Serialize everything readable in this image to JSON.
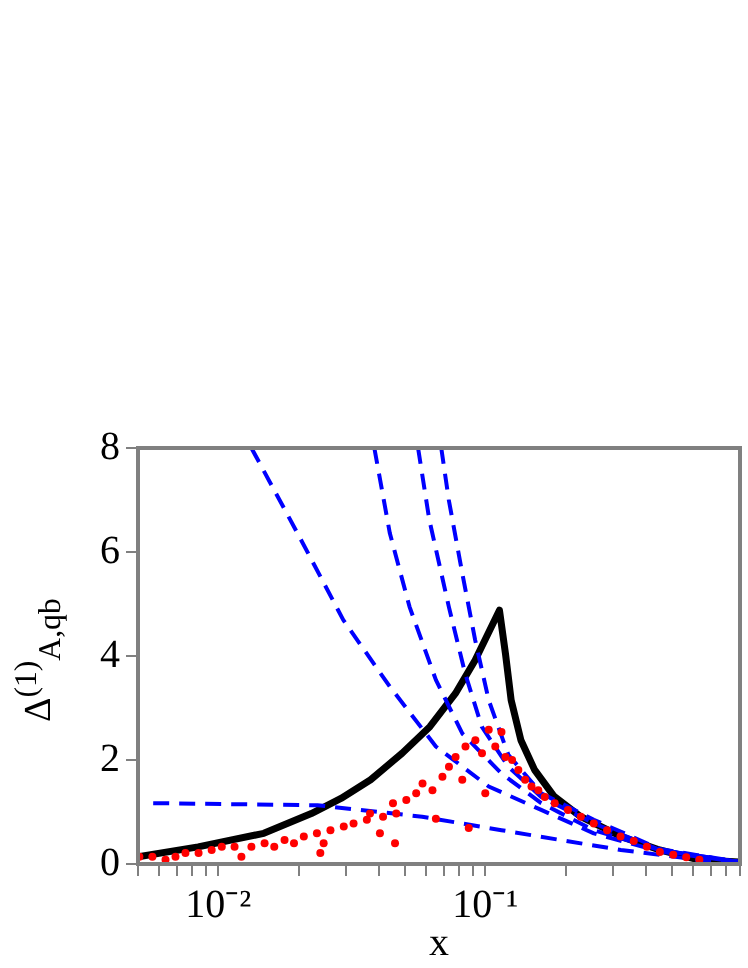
{
  "chart_data": {
    "type": "line",
    "xlabel": "x",
    "ylabel": "Δ$^{(1)}$$_{A,qb}$",
    "xlim": [
      0.005,
      0.9
    ],
    "ylim": [
      0,
      8
    ],
    "log": "x",
    "grid": false,
    "legend": false,
    "xticks": [
      {
        "value": 0.005,
        "label": null
      },
      {
        "value": 0.006,
        "label": null
      },
      {
        "value": 0.007,
        "label": null
      },
      {
        "value": 0.008,
        "label": null
      },
      {
        "value": 0.009,
        "label": null
      },
      {
        "value": 0.01,
        "label": "10⁻²"
      },
      {
        "value": 0.02,
        "label": null
      },
      {
        "value": 0.03,
        "label": null
      },
      {
        "value": 0.04,
        "label": null
      },
      {
        "value": 0.05,
        "label": null
      },
      {
        "value": 0.06,
        "label": null
      },
      {
        "value": 0.07,
        "label": null
      },
      {
        "value": 0.08,
        "label": null
      },
      {
        "value": 0.09,
        "label": null
      },
      {
        "value": 0.1,
        "label": "10⁻¹"
      },
      {
        "value": 0.2,
        "label": null
      },
      {
        "value": 0.3,
        "label": null
      },
      {
        "value": 0.4,
        "label": null
      },
      {
        "value": 0.5,
        "label": null
      },
      {
        "value": 0.6,
        "label": null
      },
      {
        "value": 0.7,
        "label": null
      },
      {
        "value": 0.8,
        "label": null
      },
      {
        "value": 0.9,
        "label": null
      }
    ],
    "yticks": [
      0,
      2,
      4,
      6,
      8
    ],
    "series": [
      {
        "color": "#0000ff",
        "line_style": "dashed",
        "marker": "none",
        "x": [
          0.0057,
          0.0235,
          0.058,
          0.115,
          0.192,
          0.322,
          0.63,
          0.89
        ],
        "values": [
          1.17,
          1.13,
          0.91,
          0.65,
          0.46,
          0.27,
          0.08,
          0.02
        ]
      },
      {
        "color": "#0000ff",
        "line_style": "dashed",
        "marker": "none",
        "x": [
          0.0133,
          0.0198,
          0.0294,
          0.0439,
          0.0653,
          0.103,
          0.162,
          0.255,
          0.45,
          0.89
        ],
        "values": [
          8,
          6.36,
          4.69,
          3.41,
          2.26,
          1.49,
          1.04,
          0.59,
          0.24,
          0.04
        ]
      },
      {
        "color": "#0000ff",
        "line_style": "dashed",
        "marker": "none",
        "x": [
          0.0384,
          0.0439,
          0.052,
          0.0653,
          0.082,
          0.115,
          0.162,
          0.255,
          0.45,
          0.89
        ],
        "values": [
          8,
          6.36,
          4.95,
          3.54,
          2.51,
          1.74,
          1.17,
          0.65,
          0.27,
          0.04
        ]
      },
      {
        "color": "#0000ff",
        "line_style": "dashed",
        "marker": "none",
        "x": [
          0.056,
          0.0617,
          0.073,
          0.084,
          0.097,
          0.122,
          0.162,
          0.255,
          0.45,
          0.89
        ],
        "values": [
          8,
          6.62,
          4.95,
          3.67,
          2.64,
          1.87,
          1.29,
          0.78,
          0.27,
          0.04
        ]
      },
      {
        "color": "#0000ff",
        "line_style": "dashed",
        "marker": "none",
        "x": [
          0.0684,
          0.073,
          0.082,
          0.0916,
          0.103,
          0.122,
          0.162,
          0.255,
          0.45,
          0.89
        ],
        "values": [
          8,
          7.0,
          5.59,
          4.31,
          3.15,
          2.1,
          1.36,
          0.85,
          0.29,
          0.04
        ]
      },
      {
        "color": "#000000",
        "line_style": "solid",
        "marker": "none",
        "x": [
          0.005,
          0.0084,
          0.0148,
          0.0223,
          0.0288,
          0.0372,
          0.0488,
          0.062,
          0.0773,
          0.0916,
          0.113,
          0.119,
          0.125,
          0.136,
          0.153,
          0.181,
          0.228,
          0.322,
          0.45,
          0.63,
          0.89
        ],
        "values": [
          0.14,
          0.33,
          0.59,
          0.97,
          1.26,
          1.62,
          2.13,
          2.64,
          3.28,
          3.92,
          4.88,
          4.05,
          3.15,
          2.38,
          1.81,
          1.3,
          0.91,
          0.53,
          0.27,
          0.08,
          0.04
        ]
      },
      {
        "type": "scatter",
        "color": "#ff0000",
        "marker": "circle",
        "x": [
          0.00506,
          0.00566,
          0.00634,
          0.00691,
          0.00753,
          0.00843,
          0.00944,
          0.0103,
          0.0115,
          0.0122,
          0.0133,
          0.0149,
          0.0162,
          0.0177,
          0.0192,
          0.0209,
          0.0234,
          0.0248,
          0.0241,
          0.0263,
          0.0295,
          0.0321,
          0.036,
          0.037,
          0.0414,
          0.0403,
          0.0451,
          0.0464,
          0.0459,
          0.0506,
          0.0551,
          0.0582,
          0.0634,
          0.0653,
          0.0691,
          0.0731,
          0.0774,
          0.082,
          0.0867,
          0.0843,
          0.0918,
          0.0972,
          0.1,
          0.103,
          0.109,
          0.115,
          0.119,
          0.126,
          0.133,
          0.141,
          0.149,
          0.158,
          0.167,
          0.182,
          0.204,
          0.228,
          0.255,
          0.286,
          0.321,
          0.36,
          0.403,
          0.451,
          0.506,
          0.566,
          0.634
        ],
        "values": [
          0.14,
          0.14,
          0.08,
          0.14,
          0.21,
          0.21,
          0.27,
          0.33,
          0.33,
          0.14,
          0.33,
          0.4,
          0.33,
          0.46,
          0.4,
          0.53,
          0.59,
          0.4,
          0.21,
          0.65,
          0.72,
          0.78,
          0.85,
          0.97,
          0.91,
          0.59,
          1.17,
          0.97,
          0.4,
          1.23,
          1.36,
          1.55,
          1.42,
          0.87,
          1.68,
          1.87,
          2.06,
          1.62,
          0.69,
          2.26,
          2.38,
          2.13,
          1.36,
          2.58,
          2.26,
          2.54,
          2.06,
          2.0,
          1.81,
          1.62,
          1.49,
          1.42,
          1.29,
          1.17,
          1.04,
          0.91,
          0.78,
          0.65,
          0.53,
          0.44,
          0.33,
          0.23,
          0.18,
          0.13,
          0.08
        ]
      }
    ]
  }
}
